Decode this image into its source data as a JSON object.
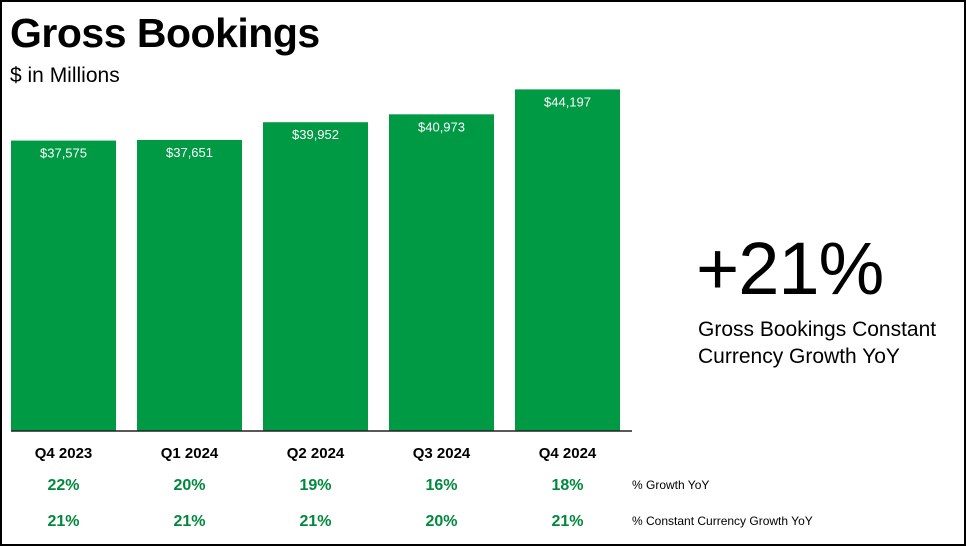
{
  "header": {
    "title": "Gross Bookings",
    "subtitle": "$ in Millions"
  },
  "kpi": {
    "value": "+21%",
    "label": "Gross Bookings Constant Currency Growth YoY"
  },
  "colors": {
    "bar": "#009a44",
    "growth_text": "#00883c",
    "axis": "#222222"
  },
  "chart_data": {
    "type": "bar",
    "categories": [
      "Q4 2023",
      "Q1 2024",
      "Q2 2024",
      "Q3 2024",
      "Q4 2024"
    ],
    "values": [
      37575,
      37651,
      39952,
      40973,
      44197
    ],
    "value_labels": [
      "$37,575",
      "$37,651",
      "$39,952",
      "$40,973",
      "$44,197"
    ],
    "ylim": [
      0,
      48000
    ],
    "grid": false,
    "rows": [
      {
        "label": "% Growth YoY",
        "values": [
          "22%",
          "20%",
          "19%",
          "16%",
          "18%"
        ]
      },
      {
        "label": "% Constant Currency Growth YoY",
        "values": [
          "21%",
          "21%",
          "21%",
          "20%",
          "21%"
        ]
      }
    ]
  }
}
